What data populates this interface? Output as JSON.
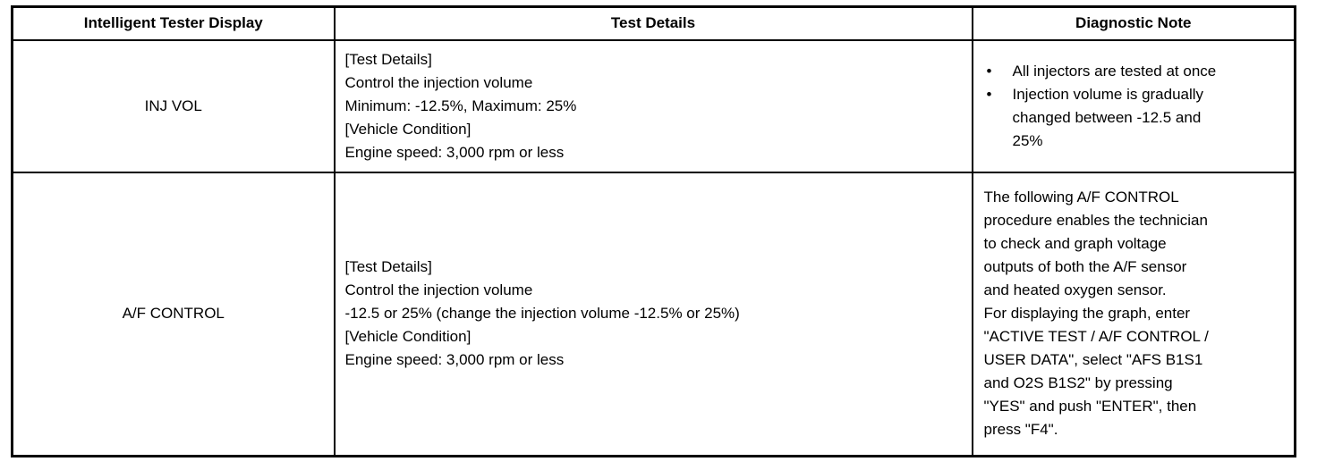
{
  "page": {
    "background": "#ffffff"
  },
  "icons": {
    "bullet_char": "•"
  },
  "colors": {
    "border": "#000000",
    "text": "#000000",
    "background": "#ffffff"
  },
  "table": {
    "headers": [
      "Intelligent Tester Display",
      "Test Details",
      "Diagnostic Note"
    ],
    "rows": [
      {
        "display": "INJ VOL",
        "test_details": [
          "[Test Details]",
          "Control the injection volume",
          "Minimum: -12.5%, Maximum: 25%",
          "[Vehicle Condition]",
          "Engine speed: 3,000 rpm or less"
        ],
        "note_bullets": [
          [
            "All injectors are tested at once"
          ],
          [
            "Injection volume is gradually",
            "changed between -12.5 and",
            "25%"
          ]
        ]
      },
      {
        "display": "A/F CONTROL",
        "test_details": [
          "[Test Details]",
          "Control the injection volume",
          "-12.5 or 25% (change the injection volume -12.5% or 25%)",
          "[Vehicle Condition]",
          "Engine speed: 3,000 rpm or less"
        ],
        "note_lines": [
          "The following A/F CONTROL",
          "procedure enables the technician",
          "to check and graph voltage",
          "outputs of both the A/F sensor",
          "and heated oxygen sensor.",
          "For displaying the graph, enter",
          "\"ACTIVE TEST / A/F CONTROL /",
          "USER DATA\", select \"AFS B1S1",
          "and O2S B1S2\" by pressing",
          "\"YES\" and push \"ENTER\", then",
          "press \"F4\"."
        ]
      }
    ]
  }
}
